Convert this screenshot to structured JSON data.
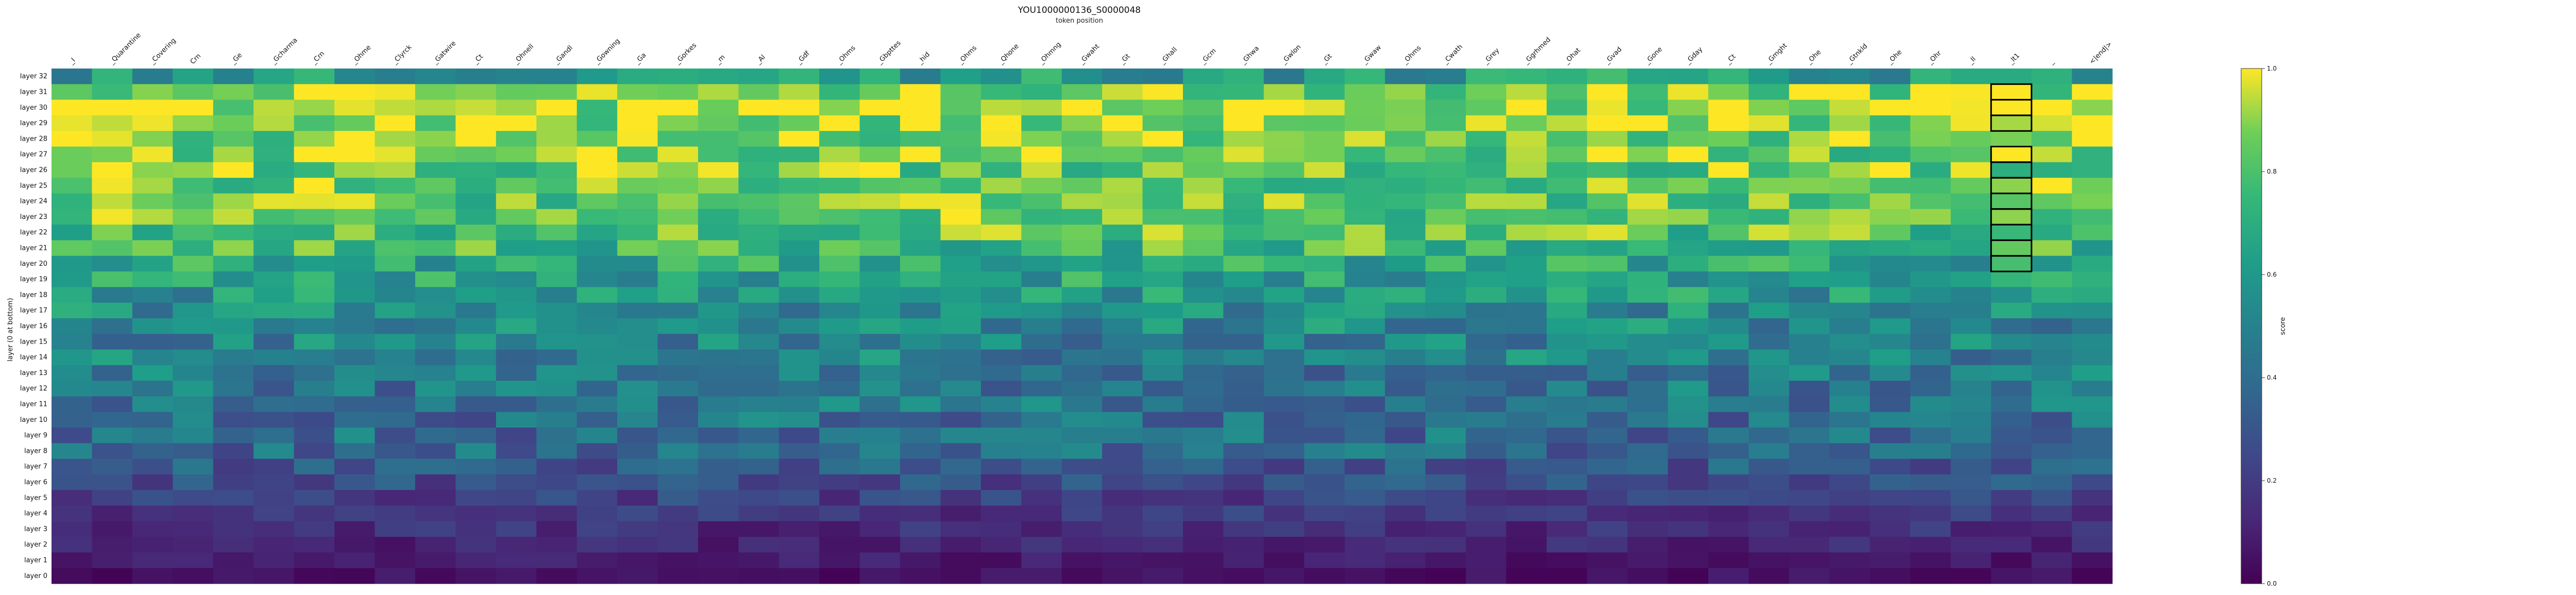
{
  "chart_data": {
    "type": "heatmap",
    "title": "YOU1000000136_S0000048",
    "xlabel": "token position",
    "ylabel": "layer (0 at bottom)",
    "colorbar_label": "score",
    "colorscale": "viridis",
    "vmin": 0.0,
    "vmax": 1.0,
    "colorbar_ticks": [
      "0.0",
      "0.2",
      "0.4",
      "0.6",
      "0.8",
      "1.0"
    ],
    "x_tokens": [
      "_I",
      "_Quarantine",
      "_Covering",
      "Crn",
      "_Ge",
      "_Gcharma",
      "_Crn",
      "_Ohme",
      "_Clyrck",
      "_Gatwire",
      "_Ct",
      "_Ohnell",
      "_Gandl",
      "_Gowning",
      "_Ga",
      "_Gorkes",
      "_m",
      "_Al",
      "_Gdf",
      "_Ohms",
      "_Gbpttes",
      "_hid",
      "_Ohms",
      "_Qhone",
      "_Ohmng",
      "_Gwaht",
      "_Gt",
      "_Ghall",
      "_Gcm",
      "_Ghwa",
      "_Gwlon",
      "_Gt",
      "_Gwaw",
      "_Ohms",
      "_Cwath",
      "_Grey",
      "_Ggrhmed",
      "_Ohat",
      "_Gvad",
      "_Gone",
      "_Gday",
      "_Ct",
      "_Gmght",
      "_Ohe",
      "_Gtnkld",
      "_Ohe",
      "_Ohr",
      "_Il",
      "_lt1",
      "_",
      "<|end|>"
    ],
    "y_layers": [
      "layer 32",
      "layer 31",
      "layer 30",
      "layer 29",
      "layer 28",
      "layer 27",
      "layer 26",
      "layer 25",
      "layer 24",
      "layer 23",
      "layer 22",
      "layer 21",
      "layer 20",
      "layer 19",
      "layer 18",
      "layer 17",
      "layer 16",
      "layer 15",
      "layer 14",
      "layer 13",
      "layer 12",
      "layer 11",
      "layer 10",
      "layer 9",
      "layer 8",
      "layer 7",
      "layer 6",
      "layer 5",
      "layer 4",
      "layer 3",
      "layer 2",
      "layer 1",
      "layer 0"
    ],
    "row_scores": [
      0.62,
      0.9,
      0.93,
      0.9,
      0.88,
      0.86,
      0.85,
      0.84,
      0.83,
      0.83,
      0.8,
      0.76,
      0.66,
      0.64,
      0.6,
      0.56,
      0.53,
      0.5,
      0.5,
      0.46,
      0.44,
      0.43,
      0.41,
      0.4,
      0.38,
      0.32,
      0.27,
      0.22,
      0.18,
      0.15,
      0.12,
      0.08,
      0.05
    ],
    "highlight": {
      "column": 48,
      "rows_top_segment": [
        1,
        3
      ],
      "rows_bottom_segment": [
        5,
        12
      ]
    }
  }
}
